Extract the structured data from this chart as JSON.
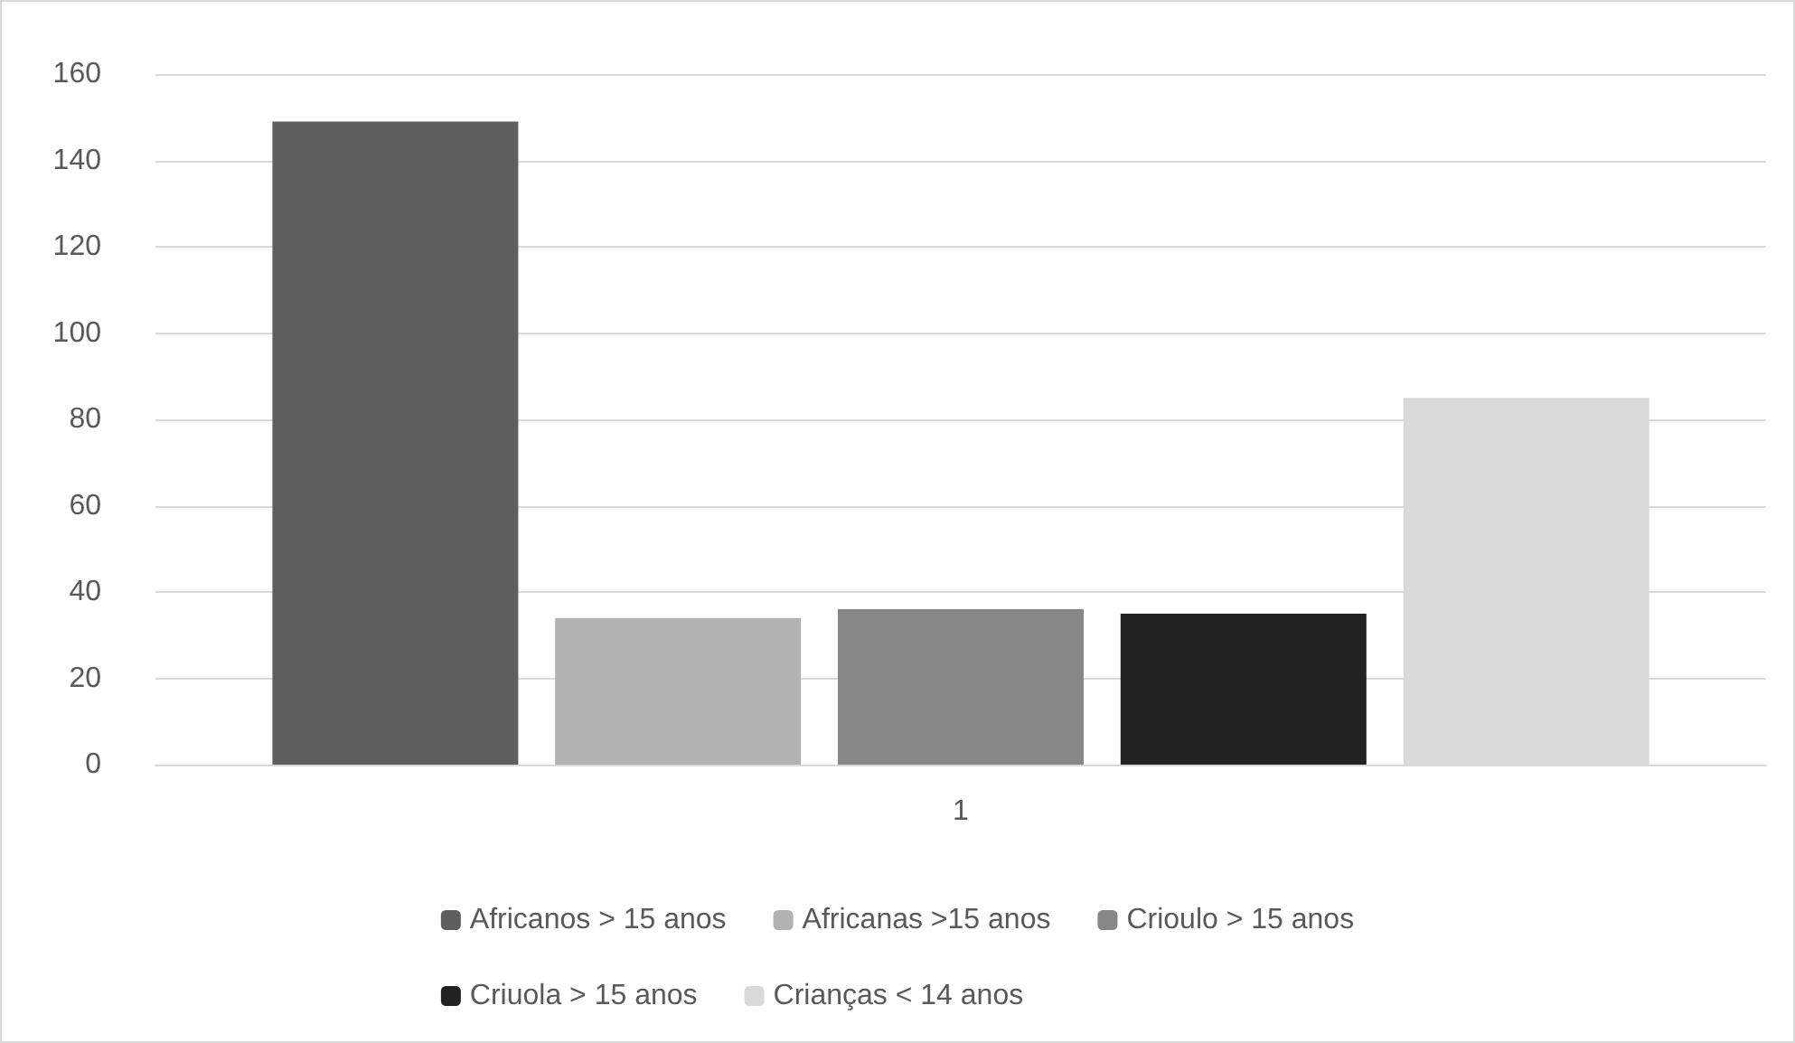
{
  "chart_data": {
    "type": "bar",
    "categories": [
      "1"
    ],
    "series": [
      {
        "name": "Africanos > 15 anos",
        "color": "#5f5f5f",
        "values": [
          149
        ]
      },
      {
        "name": "Africanas >15 anos",
        "color": "#b2b2b2",
        "values": [
          34
        ]
      },
      {
        "name": "Crioulo > 15 anos",
        "color": "#878787",
        "values": [
          36
        ]
      },
      {
        "name": "Criuola > 15 anos",
        "color": "#222222",
        "values": [
          35
        ]
      },
      {
        "name": "Crianças < 14 anos",
        "color": "#d9d9d9",
        "values": [
          85
        ]
      }
    ],
    "ylim": [
      0,
      160
    ],
    "yticks": [
      0,
      20,
      40,
      60,
      80,
      100,
      120,
      140,
      160
    ],
    "grid": "y",
    "legend": "bottom"
  }
}
